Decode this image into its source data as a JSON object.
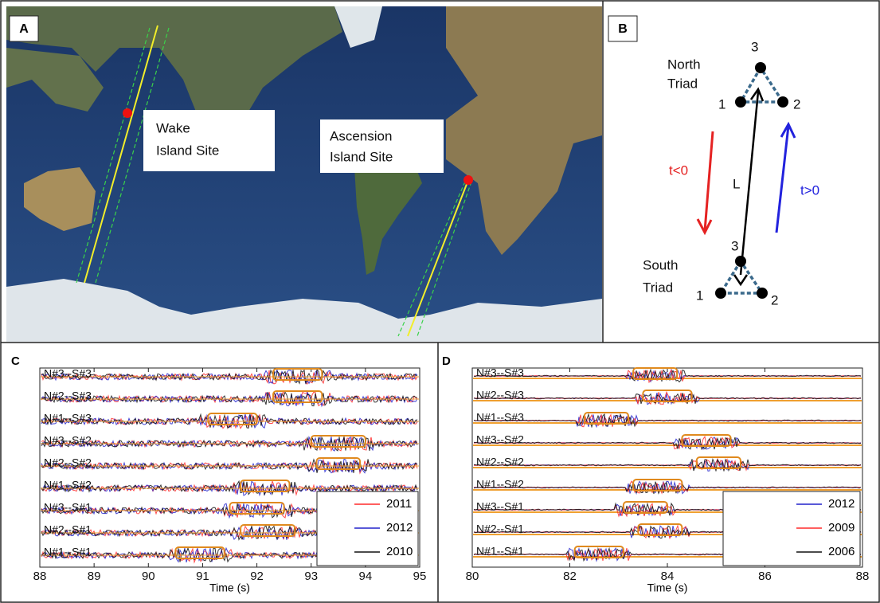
{
  "panels": {
    "a": {
      "label": "A",
      "sites": [
        {
          "lines": [
            "Wake",
            "Island Site"
          ]
        },
        {
          "lines": [
            "Ascension",
            "Island Site"
          ]
        }
      ]
    },
    "b": {
      "label": "B",
      "north": {
        "lines": [
          "North",
          "Triad"
        ]
      },
      "south": {
        "lines": [
          "South",
          "Triad"
        ]
      },
      "nodes": [
        "1",
        "2",
        "3"
      ],
      "neg": "t<0",
      "pos": "t>0",
      "distance": "L"
    }
  },
  "chart_data": [
    {
      "type": "line",
      "label": "C",
      "xlabel": "Time (s)",
      "xlim": [
        88,
        95
      ],
      "xticks": [
        88,
        89,
        90,
        91,
        92,
        93,
        94,
        95
      ],
      "traces": [
        "N#3--S#3",
        "N#2--S#3",
        "N#1--S#3",
        "N#3--S#2",
        "N#2--S#2",
        "N#1--S#2",
        "N#3--S#1",
        "N#2--S#1",
        "N#1--S#1"
      ],
      "windows": [
        [
          92.3,
          93.2
        ],
        [
          92.3,
          93.2
        ],
        [
          91.1,
          92.0
        ],
        [
          93.0,
          94.0
        ],
        [
          93.1,
          93.9
        ],
        [
          91.7,
          92.6
        ],
        [
          91.5,
          92.5
        ],
        [
          91.7,
          92.7
        ],
        [
          90.5,
          91.4
        ]
      ],
      "series": [
        {
          "name": "2011",
          "color": "#ff2a2a"
        },
        {
          "name": "2012",
          "color": "#2222cc"
        },
        {
          "name": "2010",
          "color": "#111111"
        }
      ]
    },
    {
      "type": "line",
      "label": "D",
      "xlabel": "Time (s)",
      "xlim": [
        80,
        88
      ],
      "xticks": [
        80,
        82,
        84,
        86,
        88
      ],
      "traces": [
        "N#3--S#3",
        "N#2--S#3",
        "N#1--S#3",
        "N#3--S#2",
        "N#2--S#2",
        "N#1--S#2",
        "N#3--S#1",
        "N#2--S#1",
        "N#1--S#1"
      ],
      "windows": [
        [
          83.3,
          84.2
        ],
        [
          83.5,
          84.5
        ],
        [
          82.3,
          83.2
        ],
        [
          84.3,
          85.3
        ],
        [
          84.6,
          85.5
        ],
        [
          83.3,
          84.3
        ],
        [
          83.1,
          84.0
        ],
        [
          83.4,
          84.3
        ],
        [
          82.1,
          83.1
        ]
      ],
      "series": [
        {
          "name": "2012",
          "color": "#2222cc"
        },
        {
          "name": "2009",
          "color": "#ff2a2a"
        },
        {
          "name": "2006",
          "color": "#111111"
        }
      ]
    }
  ]
}
